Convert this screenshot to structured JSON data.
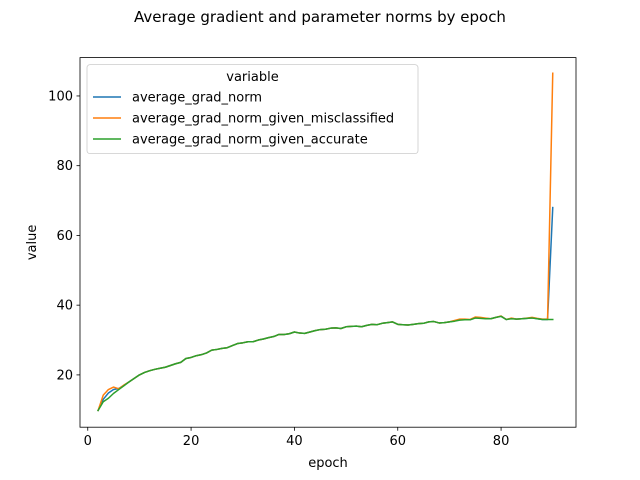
{
  "chart_data": {
    "type": "line",
    "title": "Average gradient and parameter norms by epoch",
    "xlabel": "epoch",
    "ylabel": "value",
    "xlim": [
      -1.5,
      94.5
    ],
    "ylim": [
      5,
      111
    ],
    "xticks": [
      0,
      20,
      40,
      60,
      80
    ],
    "yticks": [
      20,
      40,
      60,
      80,
      100
    ],
    "grid": false,
    "legend": {
      "title": "variable",
      "placement": "top-left"
    },
    "x": [
      2,
      3,
      4,
      5,
      6,
      7,
      8,
      9,
      10,
      11,
      12,
      13,
      14,
      15,
      16,
      17,
      18,
      19,
      20,
      21,
      22,
      23,
      24,
      25,
      26,
      27,
      28,
      29,
      30,
      31,
      32,
      33,
      34,
      35,
      36,
      37,
      38,
      39,
      40,
      41,
      42,
      43,
      44,
      45,
      46,
      47,
      48,
      49,
      50,
      51,
      52,
      53,
      54,
      55,
      56,
      57,
      58,
      59,
      60,
      61,
      62,
      63,
      64,
      65,
      66,
      67,
      68,
      69,
      70,
      71,
      72,
      73,
      74,
      75,
      76,
      77,
      78,
      79,
      80,
      81,
      82,
      83,
      84,
      85,
      86,
      87,
      88,
      89,
      90
    ],
    "series": [
      {
        "name": "average_grad_norm",
        "color": "#1f77b4",
        "values": [
          9.8,
          13.0,
          14.8,
          15.8,
          16.1,
          17.0,
          18.0,
          19.0,
          20.0,
          20.7,
          21.2,
          21.6,
          21.9,
          22.2,
          22.7,
          23.2,
          23.6,
          24.7,
          25.0,
          25.5,
          25.8,
          26.3,
          27.1,
          27.3,
          27.6,
          27.8,
          28.4,
          29.0,
          29.2,
          29.5,
          29.5,
          30.0,
          30.3,
          30.7,
          31.0,
          31.6,
          31.6,
          31.8,
          32.3,
          32.0,
          31.9,
          32.3,
          32.7,
          33.0,
          33.1,
          33.4,
          33.5,
          33.3,
          33.8,
          33.9,
          34.0,
          33.8,
          34.2,
          34.5,
          34.4,
          34.8,
          35.0,
          35.2,
          34.5,
          34.4,
          34.3,
          34.5,
          34.7,
          34.8,
          35.2,
          35.3,
          34.9,
          35.0,
          35.2,
          35.5,
          35.8,
          35.9,
          35.8,
          36.4,
          36.3,
          36.2,
          36.1,
          36.5,
          36.8,
          35.9,
          36.2,
          36.0,
          36.1,
          36.2,
          36.4,
          36.1,
          35.9,
          35.9,
          68.0
        ]
      },
      {
        "name": "average_grad_norm_given_misclassified",
        "color": "#ff7f0e",
        "values": [
          9.8,
          14.2,
          15.8,
          16.5,
          16.0,
          17.1,
          18.0,
          19.0,
          20.0,
          20.7,
          21.2,
          21.6,
          21.9,
          22.2,
          22.7,
          23.2,
          23.6,
          24.7,
          25.0,
          25.5,
          25.8,
          26.3,
          27.1,
          27.3,
          27.6,
          27.8,
          28.4,
          29.0,
          29.2,
          29.5,
          29.5,
          30.0,
          30.3,
          30.7,
          31.0,
          31.6,
          31.6,
          31.8,
          32.3,
          32.0,
          31.9,
          32.3,
          32.7,
          33.0,
          33.1,
          33.4,
          33.5,
          33.3,
          33.8,
          33.9,
          34.0,
          33.8,
          34.2,
          34.5,
          34.4,
          34.8,
          35.0,
          35.2,
          34.5,
          34.4,
          34.3,
          34.5,
          34.7,
          34.8,
          35.2,
          35.3,
          34.9,
          35.0,
          35.2,
          35.6,
          36.0,
          36.0,
          35.9,
          36.6,
          36.5,
          36.3,
          36.1,
          36.5,
          36.9,
          35.9,
          36.3,
          36.0,
          36.1,
          36.3,
          36.5,
          36.2,
          36.0,
          36.0,
          106.5
        ]
      },
      {
        "name": "average_grad_norm_given_accurate",
        "color": "#2ca02c",
        "values": [
          9.8,
          12.3,
          13.3,
          14.7,
          15.8,
          16.9,
          18.0,
          19.0,
          20.0,
          20.7,
          21.2,
          21.6,
          21.9,
          22.2,
          22.7,
          23.2,
          23.6,
          24.7,
          25.0,
          25.5,
          25.8,
          26.3,
          27.1,
          27.3,
          27.6,
          27.8,
          28.4,
          29.0,
          29.2,
          29.5,
          29.5,
          30.0,
          30.3,
          30.7,
          31.0,
          31.6,
          31.6,
          31.8,
          32.3,
          32.0,
          31.9,
          32.3,
          32.7,
          33.0,
          33.1,
          33.4,
          33.5,
          33.3,
          33.8,
          33.9,
          34.0,
          33.8,
          34.2,
          34.5,
          34.4,
          34.8,
          35.0,
          35.2,
          34.5,
          34.4,
          34.3,
          34.5,
          34.7,
          34.8,
          35.2,
          35.3,
          34.9,
          35.0,
          35.2,
          35.4,
          35.7,
          35.8,
          35.8,
          36.3,
          36.2,
          36.1,
          36.1,
          36.5,
          36.8,
          35.9,
          36.1,
          36.0,
          36.1,
          36.2,
          36.3,
          36.1,
          35.9,
          35.9,
          35.9
        ]
      }
    ]
  }
}
